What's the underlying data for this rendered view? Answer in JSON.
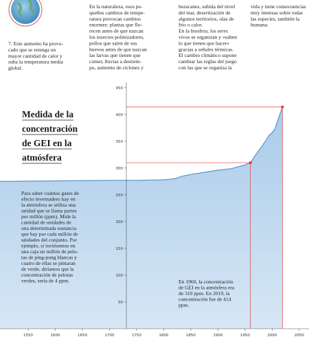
{
  "columns": [
    [
      "7. Este aumento ha provo-",
      "cado que se retenga un",
      "mayor cantidad de calor y",
      "suba la temperatura media",
      "global."
    ],
    [
      "En la naturaleza, esos pe-",
      "queños cambios de tempe-",
      "ratura provocan cambios",
      "enormes: plantas que flo-",
      "recen antes de que nazcan",
      "los insectos polinizadores,",
      "pollos que salen de sus",
      "huevos antes de que nazcan",
      "las larvas que tienen que",
      "comer, lluvias a destiem-",
      "po, aumento de ciclones y"
    ],
    [
      "huracanes, subida del nivel",
      "del mar, desertización de",
      "algunos territorios, olas de",
      "frío o calor.",
      "En la biosfera, los seres",
      "vivos se organizan y «saben",
      "lo que tienen que hacer»",
      "gracias a señales térmicas.",
      "El cambio climático supone",
      "cambiar las reglas del juego",
      "con las que se organiza la"
    ],
    [
      "vida y tiene consecuencias",
      "muy intensas sobre todas",
      "las especies, también la",
      "humana."
    ]
  ],
  "chart_data": {
    "type": "area",
    "title": [
      "Medida de la",
      "concentración",
      "de GEI en la",
      "atmósfera"
    ],
    "description": [
      "Para saber cuántos gases de",
      "efecto invernadero hay en",
      "la atmósfera se utiliza una",
      "unidad que se llama partes",
      "por millón (ppm). Mide la",
      "cantidad de unidades de",
      "una determinada sustancia",
      "que hay por cada millón de",
      "unidades del conjunto. Por",
      "ejemplo, si tuviésemos en",
      "una caja un millón de pelo-",
      "tas de ping-pong blancas y",
      "cuatro de ellas se pintaran",
      "de verde, diríamos que la",
      "concentración de pelotas",
      "verdes, sería de 4 ppm."
    ],
    "annotation": [
      "En 1960, la concentración",
      "de GEI en la atmósfera era",
      "de 310 ppm. En 2019, la",
      "concentración fue de 414",
      "ppm."
    ],
    "x": [
      1498,
      1600,
      1700,
      1750,
      1800,
      1820,
      1835,
      1850,
      1875,
      1900,
      1925,
      1950,
      1960,
      1970,
      1980,
      1990,
      1995,
      2000,
      2005,
      2010,
      2019
    ],
    "values": [
      275,
      276,
      277,
      277,
      278,
      280,
      285,
      288,
      292,
      296,
      299,
      306,
      310,
      325,
      339,
      354,
      362,
      366,
      373,
      388,
      414
    ],
    "color": "#5b93c7",
    "fill": "#bcd6ee",
    "highlight_color": "#e0393e",
    "highlights": [
      {
        "x": 1960,
        "y": 310
      },
      {
        "x": 2019,
        "y": 414
      }
    ],
    "xlim": [
      1498,
      2068
    ],
    "ylim": [
      0,
      460
    ],
    "xticks": [
      1550,
      1600,
      1650,
      1700,
      1750,
      1800,
      1850,
      1900,
      1950,
      2000,
      2050
    ],
    "yticks": [
      50,
      100,
      150,
      200,
      250,
      300,
      350,
      400,
      450
    ]
  }
}
